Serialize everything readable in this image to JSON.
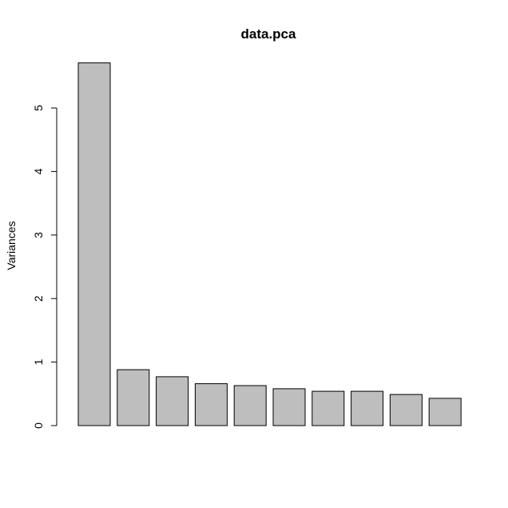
{
  "chart_data": {
    "type": "bar",
    "title": "data.pca",
    "ylabel": "Variances",
    "xlabel": "",
    "ylim": [
      0,
      5.72
    ],
    "yticks": [
      0,
      1,
      2,
      3,
      4,
      5
    ],
    "values": [
      5.71,
      0.88,
      0.77,
      0.66,
      0.63,
      0.58,
      0.54,
      0.54,
      0.49,
      0.43
    ],
    "bar_fill": "#bebebe",
    "bar_stroke": "#000000",
    "grid": false,
    "legend": "none"
  }
}
